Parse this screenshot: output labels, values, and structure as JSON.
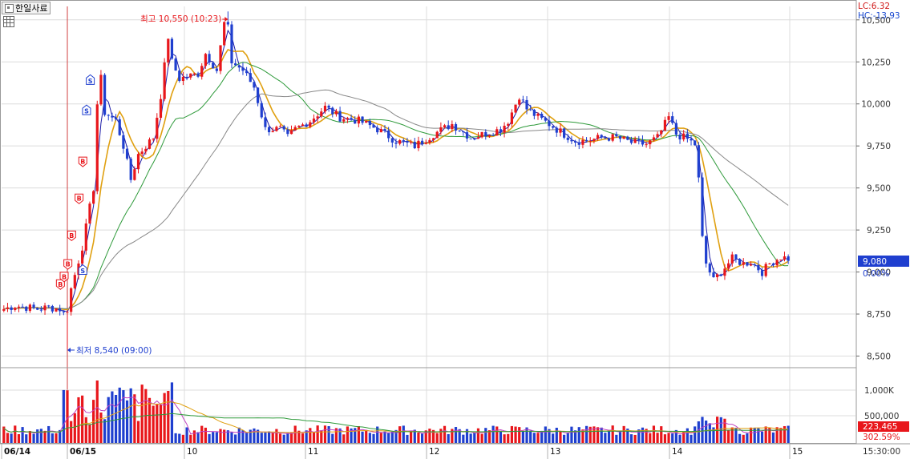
{
  "header": {
    "title": "한일사료"
  },
  "indicators": {
    "lc": "LC:6.32",
    "hc": "HC:-13.93",
    "lc_color": "#d01818",
    "hc_color": "#1848d0"
  },
  "colors": {
    "up": "#e8161b",
    "down": "#1f3fcf",
    "ma_short": "#1c1ca8",
    "ma_mid": "#e0a010",
    "ma_long": "#2e9a3a",
    "ma_longest": "#888888",
    "grid": "#dcdcdc",
    "divider": "#d24040"
  },
  "chart_data": [
    {
      "type": "candlestick",
      "name": "price",
      "y_ticks": [
        8500,
        8750,
        9000,
        9250,
        9500,
        9750,
        10000,
        10250,
        10500
      ],
      "ylim": [
        8450,
        10580
      ],
      "x_sessions": [
        "06/14",
        "06/15",
        "10",
        "11",
        "12",
        "13",
        "14",
        "15"
      ],
      "time_label": "15:30:00",
      "current_price": "9,080",
      "change_pct": "0.00%",
      "high_label": "최고 10,550 (10:23)",
      "low_label": "최저 8,540 (09:00)",
      "high": {
        "x": 59.5,
        "value": 10550
      },
      "low": {
        "x": 16.5,
        "value": 8540
      },
      "trend_anchors": [
        [
          0,
          8780
        ],
        [
          3,
          8800
        ],
        [
          6,
          8790
        ],
        [
          9,
          8780
        ],
        [
          12,
          8790
        ],
        [
          15,
          8780
        ],
        [
          16.5,
          8560
        ],
        [
          17,
          8780
        ],
        [
          18,
          8900
        ],
        [
          21,
          9150
        ],
        [
          24,
          9500
        ],
        [
          25,
          10000
        ],
        [
          26,
          10150
        ],
        [
          27,
          9950
        ],
        [
          30,
          9900
        ],
        [
          32,
          9750
        ],
        [
          34,
          9550
        ],
        [
          36,
          9700
        ],
        [
          40,
          9800
        ],
        [
          42,
          10050
        ],
        [
          44,
          10400
        ],
        [
          45,
          10250
        ],
        [
          47,
          10150
        ],
        [
          52,
          10180
        ],
        [
          54,
          10300
        ],
        [
          57,
          10200
        ],
        [
          59.5,
          10550
        ],
        [
          61,
          10250
        ],
        [
          64,
          10200
        ],
        [
          67,
          10100
        ],
        [
          70,
          9850
        ],
        [
          74,
          9850
        ],
        [
          76,
          9800
        ],
        [
          78,
          9850
        ],
        [
          82,
          9900
        ],
        [
          86,
          9980
        ],
        [
          90,
          9920
        ],
        [
          95,
          9900
        ],
        [
          100,
          9850
        ],
        [
          105,
          9780
        ],
        [
          110,
          9750
        ],
        [
          115,
          9820
        ],
        [
          120,
          9880
        ],
        [
          125,
          9800
        ],
        [
          130,
          9830
        ],
        [
          133,
          9850
        ],
        [
          135,
          9900
        ],
        [
          138,
          10050
        ],
        [
          140,
          9970
        ],
        [
          143,
          9920
        ],
        [
          146,
          9880
        ],
        [
          150,
          9820
        ],
        [
          153,
          9780
        ],
        [
          156,
          9780
        ],
        [
          160,
          9800
        ],
        [
          164,
          9800
        ],
        [
          168,
          9770
        ],
        [
          172,
          9760
        ],
        [
          175,
          9800
        ],
        [
          178,
          9920
        ],
        [
          180,
          9820
        ],
        [
          183,
          9790
        ],
        [
          185,
          9760
        ],
        [
          186,
          9550
        ],
        [
          187,
          9200
        ],
        [
          188,
          9050
        ],
        [
          190,
          8950
        ],
        [
          192,
          9000
        ],
        [
          195,
          9080
        ],
        [
          198,
          9050
        ],
        [
          200,
          9060
        ],
        [
          203,
          9000
        ],
        [
          205,
          9050
        ],
        [
          208,
          9090
        ],
        [
          210,
          9080
        ]
      ]
    },
    {
      "type": "bar",
      "name": "volume",
      "y_ticks": [
        "500,000",
        "1,000K"
      ],
      "current_volume": "223,465",
      "ratio": "302.59%"
    }
  ]
}
